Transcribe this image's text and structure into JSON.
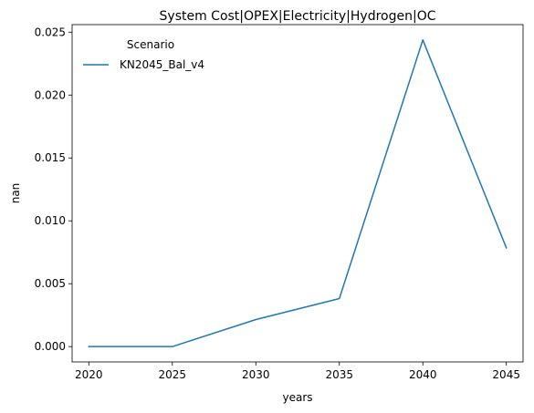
{
  "chart_data": {
    "type": "line",
    "title": "System Cost|OPEX|Electricity|Hydrogen|OC",
    "xlabel": "years",
    "ylabel": "nan",
    "x": [
      2020,
      2025,
      2030,
      2035,
      2040,
      2045
    ],
    "series": [
      {
        "name": "KN2045_Bal_v4",
        "values": [
          0.0,
          0.0,
          0.00215,
          0.00382,
          0.02438,
          0.00785
        ],
        "color": "#1f77b4"
      }
    ],
    "xlim": [
      2019,
      2046
    ],
    "ylim": [
      -0.00122,
      0.0256
    ],
    "xticks": [
      2020,
      2025,
      2030,
      2035,
      2040,
      2045
    ],
    "yticks": [
      0.0,
      0.005,
      0.01,
      0.015,
      0.02,
      0.025
    ],
    "ytick_labels": [
      "0.000",
      "0.005",
      "0.010",
      "0.015",
      "0.020",
      "0.025"
    ],
    "legend": {
      "title": "Scenario",
      "placement": "top-left"
    },
    "grid": false
  }
}
